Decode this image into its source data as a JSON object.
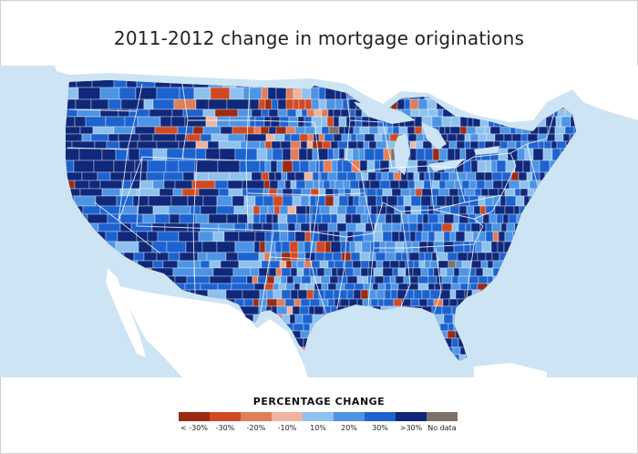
{
  "title": "2011-2012 change in mortgage originations",
  "legend": {
    "title": "PERCENTAGE CHANGE",
    "items": [
      {
        "label": "< -30%",
        "color": "#9b2a14"
      },
      {
        "label": "-30%",
        "color": "#cf4a24"
      },
      {
        "label": "-20%",
        "color": "#e07d5c"
      },
      {
        "label": "-10%",
        "color": "#eeb49f"
      },
      {
        "label": "10%",
        "color": "#8ec1ee"
      },
      {
        "label": "20%",
        "color": "#4d94e4"
      },
      {
        "label": "30%",
        "color": "#1d63cf"
      },
      {
        "label": ">30%",
        "color": "#10287a"
      },
      {
        "label": "No data",
        "color": "#7d716a"
      }
    ]
  },
  "colors": {
    "water": "#cde4f4",
    "land_outside": "#ffffff",
    "county_border": "#ffffff"
  }
}
